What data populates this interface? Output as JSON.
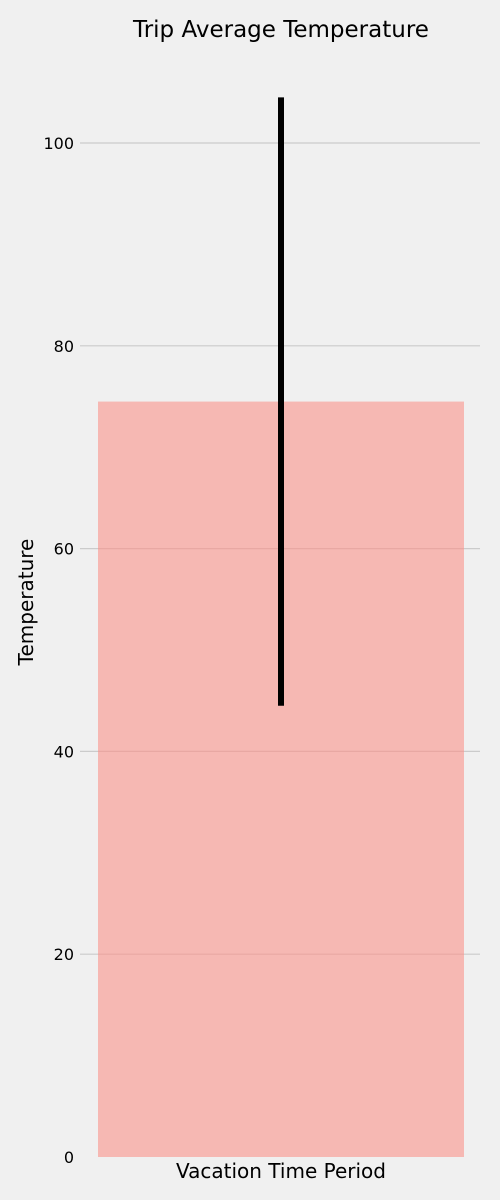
{
  "chart_data": {
    "type": "bar",
    "title": "Trip Average Temperature",
    "xlabel": "Vacation Time Period",
    "ylabel": "Temperature",
    "categories": [
      ""
    ],
    "values": [
      74.5
    ],
    "error": {
      "low": 44.5,
      "high": 104.5
    },
    "ylim": [
      0,
      105
    ],
    "yticks": [
      0,
      20,
      40,
      60,
      80,
      100
    ],
    "grid": "horizontal",
    "colors": {
      "bar": "#f6b8b3",
      "error_bar": "#000000",
      "grid": "#cbcbcb",
      "background": "#f0f0f0"
    }
  }
}
